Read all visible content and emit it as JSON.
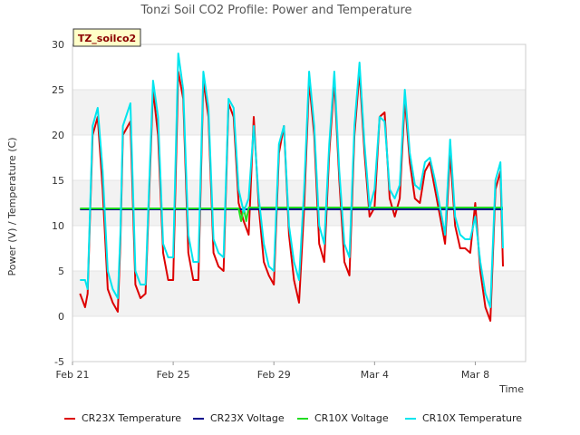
{
  "chart_data": {
    "type": "line",
    "title": "Tonzi Soil CO2 Profile: Power and Temperature",
    "xlabel": "Time",
    "ylabel": "Power (V) / Temperature (C)",
    "xlim": [
      0,
      18
    ],
    "ylim": [
      -5,
      30
    ],
    "yticks": [
      -5,
      0,
      5,
      10,
      15,
      20,
      25,
      30
    ],
    "xticks": [
      {
        "x": 0,
        "label": "Feb 21"
      },
      {
        "x": 4,
        "label": "Feb 25"
      },
      {
        "x": 8,
        "label": "Feb 29"
      },
      {
        "x": 12,
        "label": "Mar 4"
      },
      {
        "x": 16,
        "label": "Mar 8"
      }
    ],
    "grid": "horizontal bands",
    "legend_position": "bottom",
    "badge": "TZ_soilco2",
    "series": [
      {
        "name": "CR23X Temperature",
        "color": "#dd0000",
        "x": [
          0.3,
          0.5,
          0.6,
          0.8,
          1.0,
          1.2,
          1.4,
          1.6,
          1.8,
          1.9,
          2.0,
          2.3,
          2.5,
          2.7,
          2.9,
          3.0,
          3.2,
          3.4,
          3.6,
          3.8,
          4.0,
          4.2,
          4.4,
          4.6,
          4.8,
          5.0,
          5.2,
          5.4,
          5.6,
          5.8,
          6.0,
          6.2,
          6.4,
          6.6,
          6.8,
          7.0,
          7.2,
          7.4,
          7.6,
          7.8,
          8.0,
          8.2,
          8.4,
          8.6,
          8.8,
          9.0,
          9.2,
          9.4,
          9.6,
          9.8,
          10.0,
          10.2,
          10.4,
          10.6,
          10.8,
          11.0,
          11.2,
          11.4,
          11.6,
          11.8,
          12.0,
          12.2,
          12.4,
          12.6,
          12.8,
          13.0,
          13.2,
          13.4,
          13.6,
          13.8,
          14.0,
          14.2,
          14.4,
          14.6,
          14.8,
          15.0,
          15.2,
          15.4,
          15.6,
          15.8,
          16.0,
          16.2,
          16.4,
          16.6,
          16.8,
          17.0,
          17.1
        ],
        "y": [
          2.5,
          1.0,
          2.5,
          20.0,
          22.0,
          14.0,
          3.0,
          1.5,
          0.5,
          8.0,
          20.0,
          21.5,
          3.5,
          2.0,
          2.5,
          10.0,
          25.0,
          20.0,
          7.0,
          4.0,
          4.0,
          27.0,
          24.0,
          7.0,
          4.0,
          4.0,
          26.0,
          22.0,
          7.0,
          5.5,
          5.0,
          23.5,
          22.0,
          12.5,
          10.5,
          9.0,
          22.0,
          12.0,
          6.0,
          4.5,
          3.5,
          18.0,
          21.0,
          9.0,
          4.0,
          1.5,
          12.0,
          26.0,
          20.0,
          8.0,
          6.0,
          18.0,
          26.0,
          15.0,
          6.0,
          4.5,
          20.0,
          27.0,
          18.0,
          11.0,
          12.0,
          22.0,
          22.5,
          13.0,
          11.0,
          13.0,
          24.0,
          17.0,
          13.0,
          12.5,
          16.0,
          17.0,
          14.0,
          11.0,
          8.0,
          18.0,
          10.0,
          7.5,
          7.5,
          7.0,
          12.5,
          5.0,
          1.0,
          -0.5,
          14.0,
          16.0,
          5.5
        ]
      },
      {
        "name": "CR23X Voltage",
        "color": "#00008b",
        "x": [
          0.3,
          17.1
        ],
        "y": [
          11.8,
          11.8
        ]
      },
      {
        "name": "CR10X Voltage",
        "color": "#22dd22",
        "x": [
          0.3,
          6.6,
          6.7,
          6.8,
          6.9,
          7.0,
          17.1
        ],
        "y": [
          11.9,
          11.9,
          10.5,
          12.0,
          10.5,
          12.0,
          12.0
        ]
      },
      {
        "name": "CR10X Temperature",
        "color": "#00e5ee",
        "x": [
          0.3,
          0.5,
          0.6,
          0.8,
          1.0,
          1.2,
          1.4,
          1.6,
          1.8,
          1.9,
          2.0,
          2.3,
          2.5,
          2.7,
          2.9,
          3.0,
          3.2,
          3.4,
          3.6,
          3.8,
          4.0,
          4.2,
          4.4,
          4.6,
          4.8,
          5.0,
          5.2,
          5.4,
          5.6,
          5.8,
          6.0,
          6.2,
          6.4,
          6.6,
          6.8,
          7.0,
          7.2,
          7.4,
          7.6,
          7.8,
          8.0,
          8.2,
          8.4,
          8.6,
          8.8,
          9.0,
          9.2,
          9.4,
          9.6,
          9.8,
          10.0,
          10.2,
          10.4,
          10.6,
          10.8,
          11.0,
          11.2,
          11.4,
          11.6,
          11.8,
          12.0,
          12.2,
          12.4,
          12.6,
          12.8,
          13.0,
          13.2,
          13.4,
          13.6,
          13.8,
          14.0,
          14.2,
          14.4,
          14.6,
          14.8,
          15.0,
          15.2,
          15.4,
          15.6,
          15.8,
          16.0,
          16.2,
          16.4,
          16.6,
          16.8,
          17.0,
          17.1
        ],
        "y": [
          4.0,
          4.0,
          3.0,
          21.0,
          23.0,
          16.0,
          5.0,
          3.0,
          2.0,
          9.0,
          21.0,
          23.5,
          5.0,
          3.5,
          3.5,
          11.0,
          26.0,
          22.0,
          8.0,
          6.5,
          6.5,
          29.0,
          25.0,
          9.0,
          6.0,
          6.0,
          27.0,
          23.0,
          8.5,
          7.0,
          6.5,
          24.0,
          23.0,
          14.0,
          11.5,
          13.0,
          21.0,
          13.0,
          8.0,
          5.5,
          5.0,
          19.0,
          21.0,
          10.0,
          6.0,
          4.0,
          14.0,
          27.0,
          21.0,
          10.0,
          8.0,
          19.0,
          27.0,
          16.0,
          8.0,
          6.5,
          21.0,
          28.0,
          19.0,
          12.0,
          14.0,
          22.0,
          21.5,
          14.0,
          13.0,
          14.5,
          25.0,
          18.0,
          14.5,
          14.0,
          17.0,
          17.5,
          15.0,
          12.0,
          9.0,
          19.5,
          11.0,
          9.0,
          8.5,
          8.5,
          11.0,
          6.0,
          2.5,
          1.0,
          15.0,
          17.0,
          7.5
        ]
      }
    ]
  }
}
